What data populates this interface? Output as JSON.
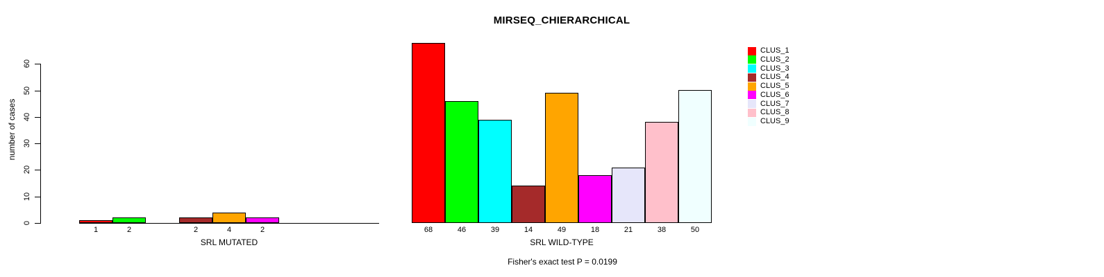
{
  "chart_data": {
    "type": "bar",
    "title": "MIRSEQ_CHIERARCHICAL",
    "ylabel": "number of cases",
    "ylim": [
      0,
      60
    ],
    "yticks": [
      0,
      10,
      20,
      30,
      40,
      50,
      60
    ],
    "grid": false,
    "categories": [
      "CLUS_1",
      "CLUS_2",
      "CLUS_3",
      "CLUS_4",
      "CLUS_5",
      "CLUS_6",
      "CLUS_7",
      "CLUS_8",
      "CLUS_9"
    ],
    "colors": [
      "#FF0000",
      "#00FF00",
      "#00FFFF",
      "#A52A2A",
      "#FFA500",
      "#FF00FF",
      "#E6E6FA",
      "#FFC0CB",
      "#F0FFFF"
    ],
    "legend_position": "right",
    "panels": [
      {
        "xlabel": "SRL MUTATED",
        "values": [
          1,
          2,
          0,
          2,
          4,
          2,
          0,
          0,
          0
        ]
      },
      {
        "xlabel": "SRL WILD-TYPE",
        "values": [
          68,
          46,
          39,
          14,
          49,
          18,
          21,
          38,
          50
        ]
      }
    ],
    "annotation": "Fisher's exact test P = 0.0199"
  }
}
